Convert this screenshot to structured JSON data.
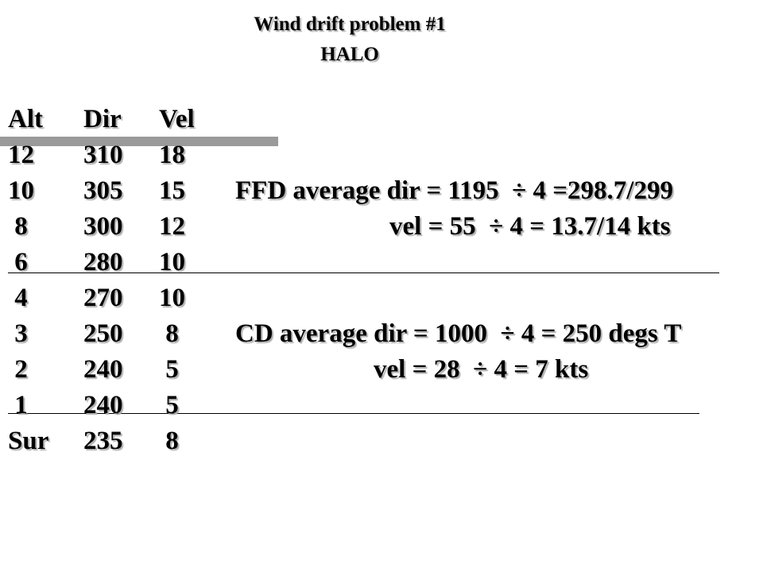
{
  "header": {
    "title": "Wind drift problem #1",
    "subtitle": "HALO"
  },
  "table": {
    "columns": [
      "Alt",
      "Dir",
      "Vel"
    ],
    "rows": [
      [
        "12",
        "310",
        "18"
      ],
      [
        "10",
        "305",
        "15"
      ],
      [
        " 8",
        "300",
        "12"
      ],
      [
        " 6",
        "280",
        "10"
      ],
      [
        " 4",
        "270",
        "10"
      ],
      [
        " 3",
        "250",
        " 8"
      ],
      [
        " 2",
        "240",
        " 5"
      ],
      [
        " 1",
        "240",
        " 5"
      ],
      [
        "Sur",
        "235",
        " 8"
      ]
    ]
  },
  "notes": [
    {
      "row": 1,
      "text": "FFD average dir = 1195  ÷ 4 =298.7/299"
    },
    {
      "row": 2,
      "text": "vel = 55  ÷ 4 = 13.7/14 kts"
    },
    {
      "row": 5,
      "text": "CD average dir = 1000  ÷ 4 = 250 degs T"
    },
    {
      "row": 6,
      "text": "vel = 28  ÷ 4 = 7 kts"
    }
  ]
}
